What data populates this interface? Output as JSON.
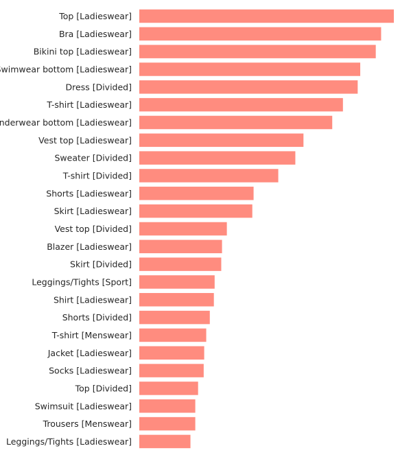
{
  "chart_data": {
    "type": "bar",
    "orientation": "horizontal",
    "title": "",
    "xlabel": "",
    "ylabel": "",
    "grid": false,
    "legend": "none",
    "bar_color": "#ff8c7f",
    "xlim": [
      0,
      100
    ],
    "categories": [
      "Top [Ladieswear]",
      "Bra [Ladieswear]",
      "Bikini top [Ladieswear]",
      "Swimwear bottom [Ladieswear]",
      "Dress [Divided]",
      "T-shirt [Ladieswear]",
      "Underwear bottom [Ladieswear]",
      "Vest top [Ladieswear]",
      "Sweater [Divided]",
      "T-shirt [Divided]",
      "Shorts [Ladieswear]",
      "Skirt [Ladieswear]",
      "Vest top [Divided]",
      "Blazer [Ladieswear]",
      "Skirt [Divided]",
      "Leggings/Tights [Sport]",
      "Shirt [Ladieswear]",
      "Shorts [Divided]",
      "T-shirt [Menswear]",
      "Jacket [Ladieswear]",
      "Socks [Ladieswear]",
      "Top [Divided]",
      "Swimsuit [Ladieswear]",
      "Trousers [Menswear]",
      "Leggings/Tights [Ladieswear]"
    ],
    "values": [
      100,
      95,
      92.9,
      86.8,
      85.8,
      80,
      75.8,
      64.5,
      61.3,
      54.6,
      44.9,
      44.4,
      34.4,
      32.5,
      32.2,
      29.6,
      29.3,
      27.7,
      26.3,
      25.5,
      25.3,
      23.1,
      22,
      22,
      20.1
    ]
  }
}
